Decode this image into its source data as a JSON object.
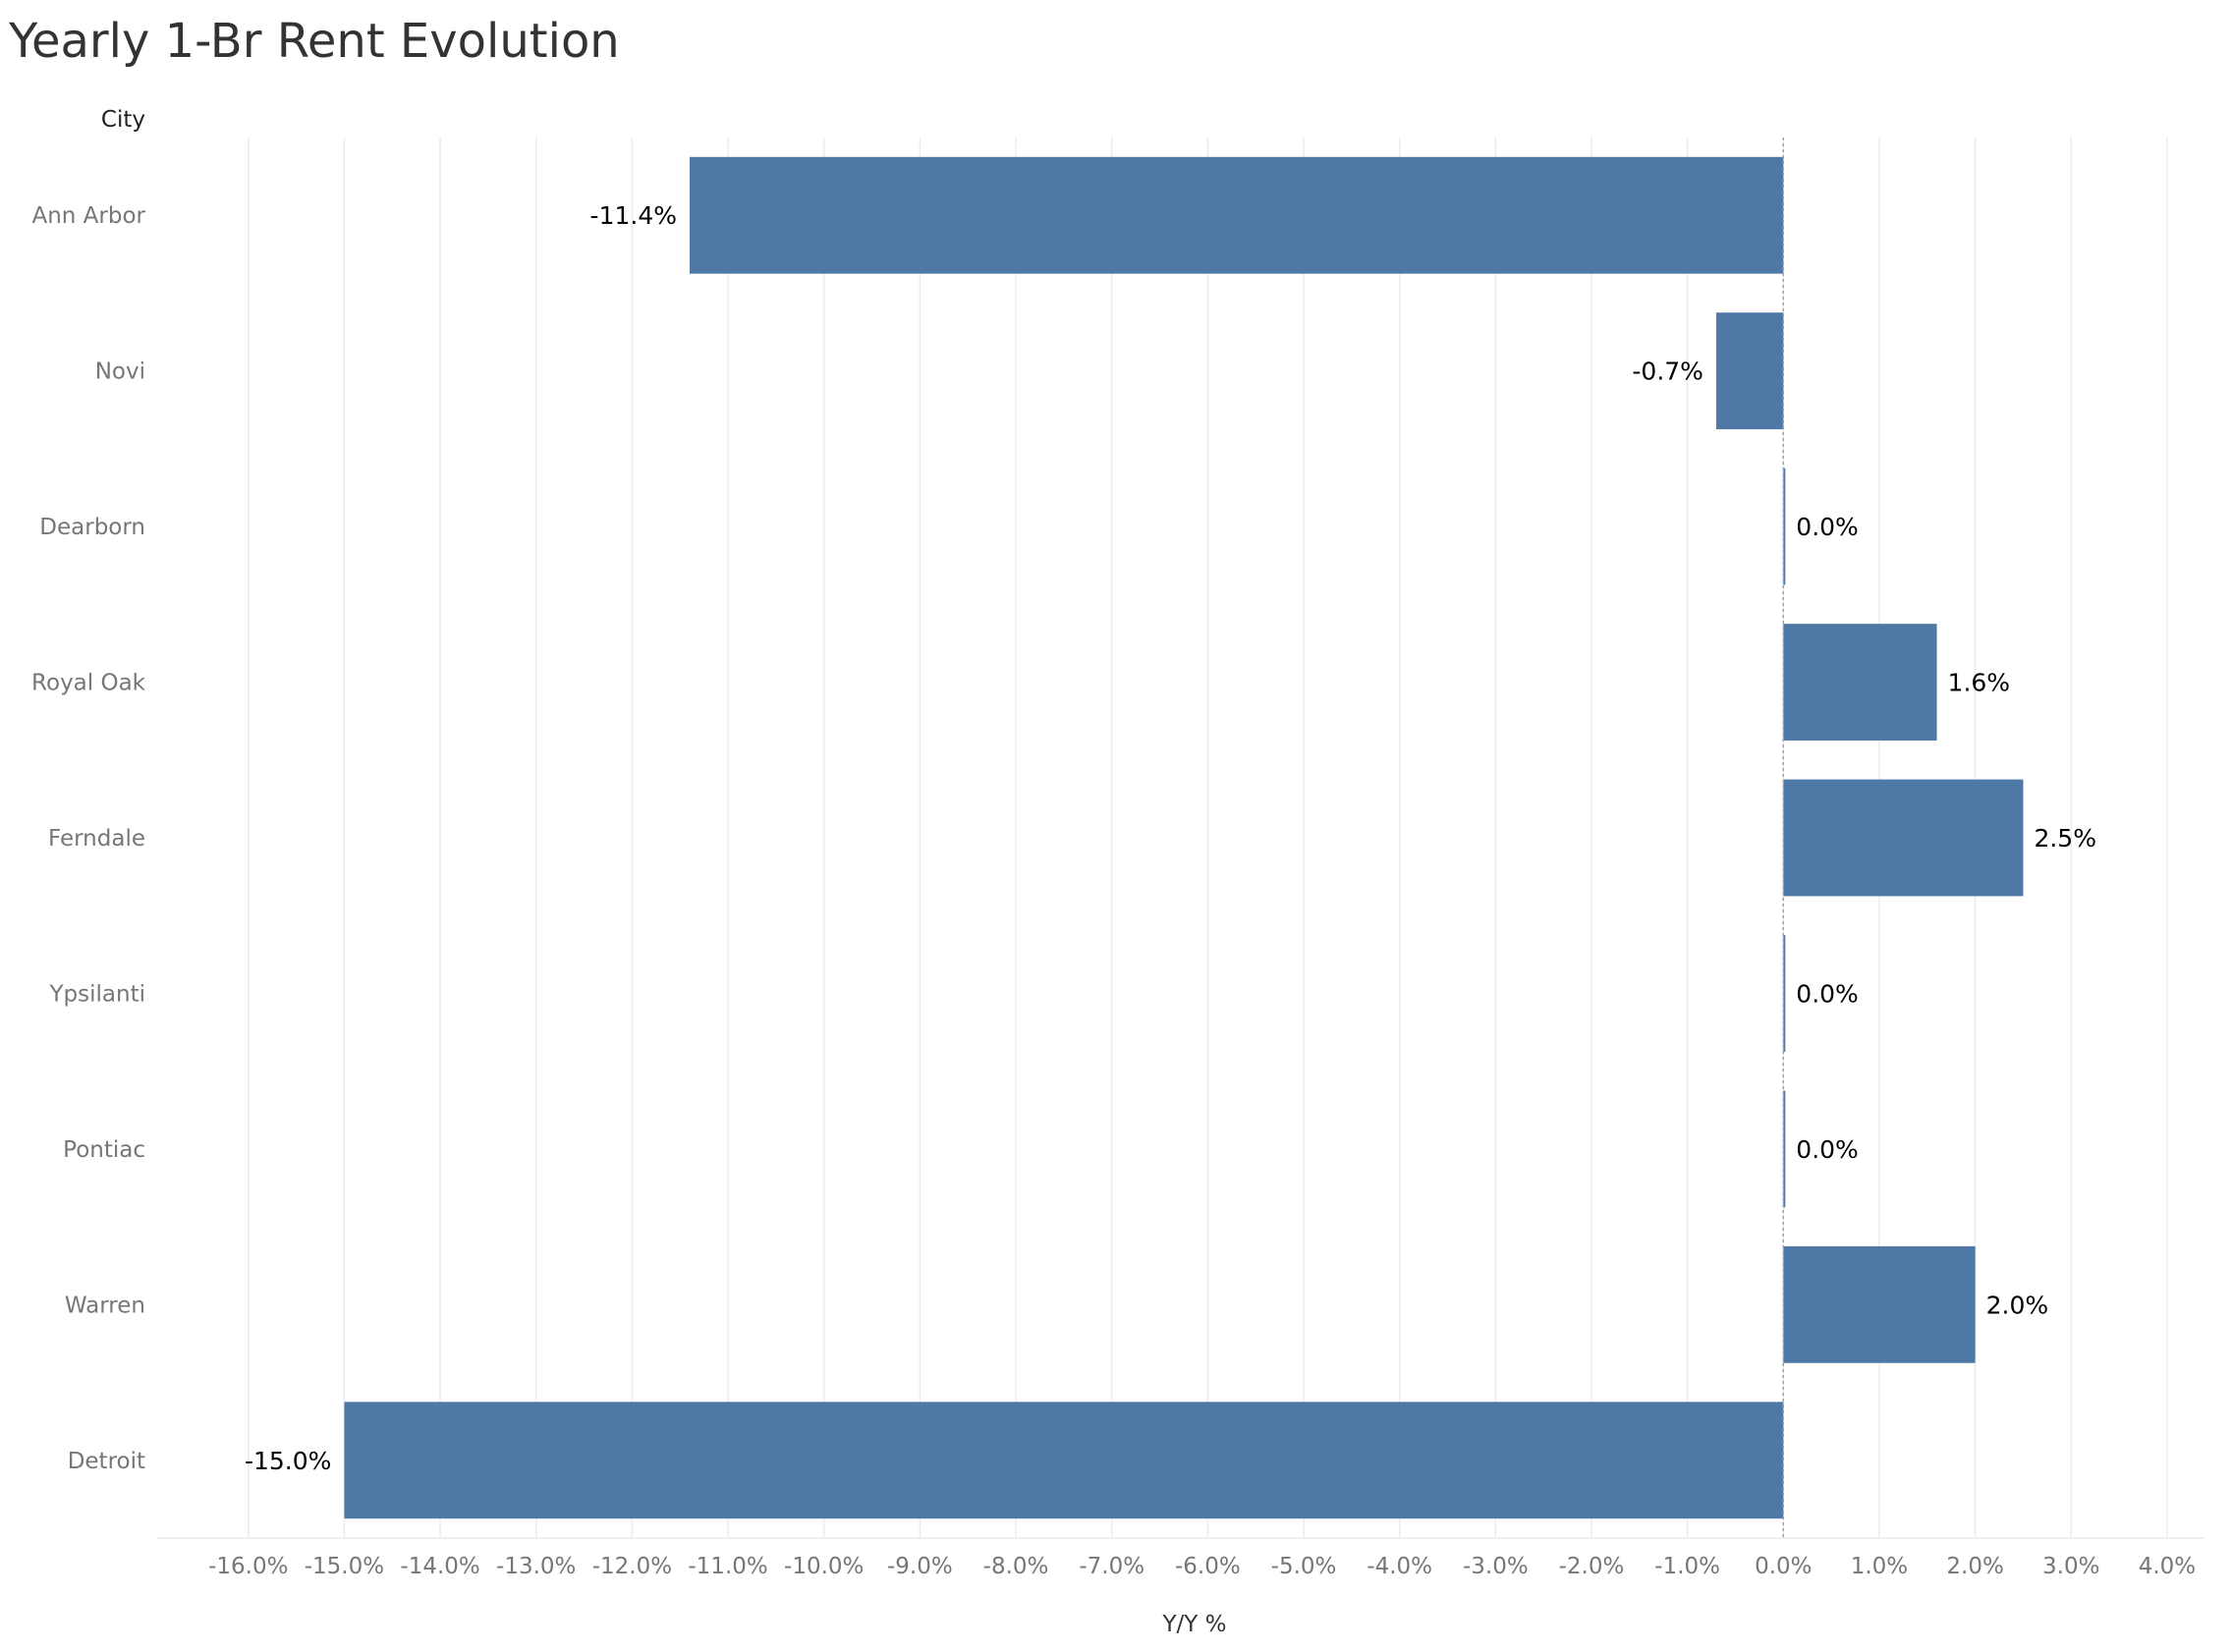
{
  "chart_data": {
    "type": "bar",
    "orientation": "horizontal",
    "title": "Yearly 1-Br Rent Evolution",
    "row_header": "City",
    "xlabel": "Y/Y %",
    "categories": [
      "Ann Arbor",
      "Novi",
      "Dearborn",
      "Royal Oak",
      "Ferndale",
      "Ypsilanti",
      "Pontiac",
      "Warren",
      "Detroit"
    ],
    "values": [
      -11.4,
      -0.7,
      0.0,
      1.6,
      2.5,
      0.0,
      0.0,
      2.0,
      -15.0
    ],
    "data_labels": [
      "-11.4%",
      "-0.7%",
      "0.0%",
      "1.6%",
      "2.5%",
      "0.0%",
      "0.0%",
      "2.0%",
      "-15.0%"
    ],
    "xlim": [
      -16.95,
      4.4
    ],
    "x_ticks": [
      -16,
      -15,
      -14,
      -13,
      -12,
      -11,
      -10,
      -9,
      -8,
      -7,
      -6,
      -5,
      -4,
      -3,
      -2,
      -1,
      0,
      1,
      2,
      3,
      4
    ],
    "x_tick_labels": [
      "-16.0%",
      "-15.0%",
      "-14.0%",
      "-13.0%",
      "-12.0%",
      "-11.0%",
      "-10.0%",
      "-9.0%",
      "-8.0%",
      "-7.0%",
      "-6.0%",
      "-5.0%",
      "-4.0%",
      "-3.0%",
      "-2.0%",
      "-1.0%",
      "0.0%",
      "1.0%",
      "2.0%",
      "3.0%",
      "4.0%"
    ],
    "grid": "vertical",
    "legend": "none",
    "colors": {
      "bar": "#4e79a7",
      "grid": "#ececec",
      "zero_line": "#a0a0a0"
    }
  }
}
